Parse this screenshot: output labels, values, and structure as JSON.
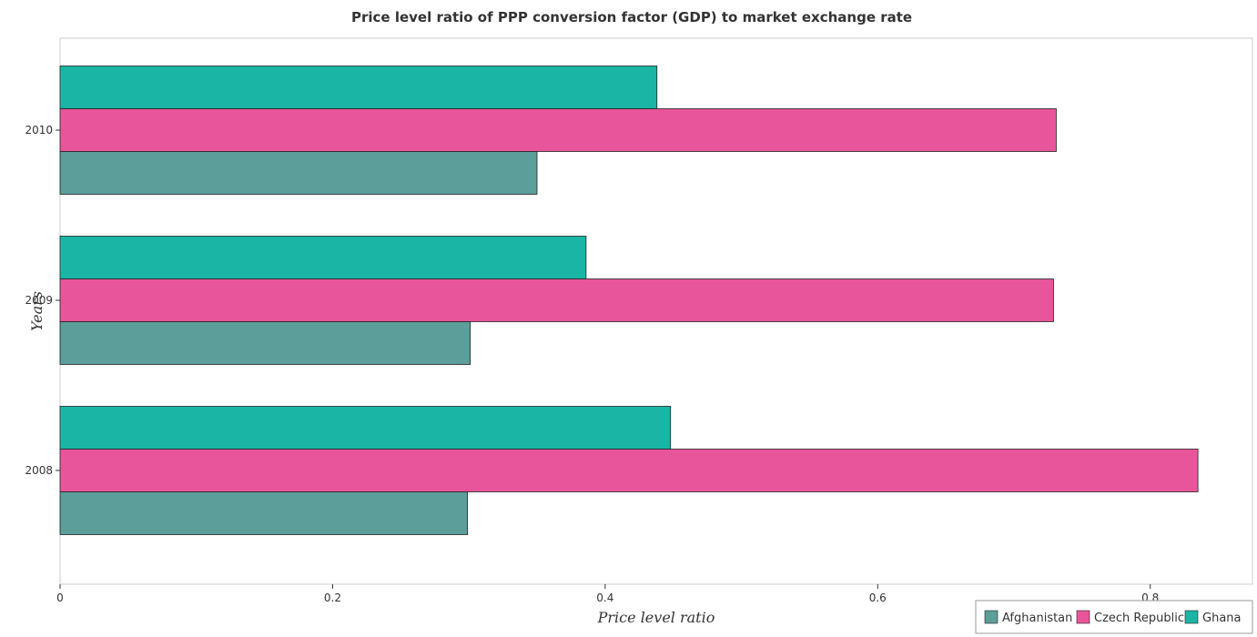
{
  "chart_data": {
    "type": "bar",
    "orientation": "horizontal",
    "title": "Price level ratio of PPP conversion factor (GDP) to market exchange rate",
    "xlabel": "Price level ratio",
    "ylabel": "Years",
    "xlim": [
      0,
      0.875
    ],
    "x_ticks": [
      0,
      0.2,
      0.4,
      0.6,
      0.8
    ],
    "x_tick_labels": [
      "0",
      "0.2",
      "0.4",
      "0.6",
      "0.8"
    ],
    "categories": [
      "2008",
      "2009",
      "2010"
    ],
    "series": [
      {
        "name": "Afghanistan",
        "color": "#5b9e9a",
        "values": [
          0.299,
          0.301,
          0.35
        ]
      },
      {
        "name": "Czech Republic",
        "color": "#e8559a",
        "values": [
          0.835,
          0.729,
          0.731
        ]
      },
      {
        "name": "Ghana",
        "color": "#1ab5a4",
        "values": [
          0.448,
          0.386,
          0.438
        ]
      }
    ],
    "grid": false,
    "legend_position": "bottom-right"
  }
}
